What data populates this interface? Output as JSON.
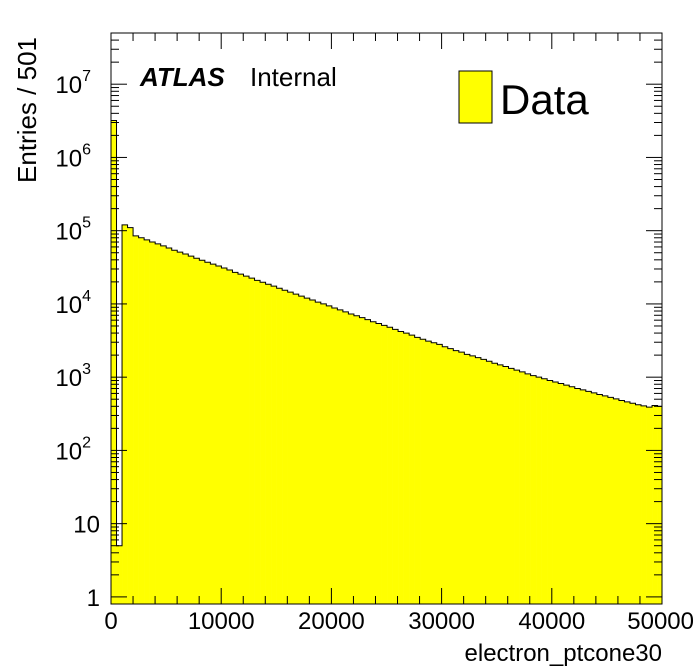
{
  "chart_data": {
    "type": "bar",
    "title": "",
    "xlabel": "electron_ptcone30",
    "ylabel": "Entries / 501",
    "xlim": [
      0,
      50000
    ],
    "ylim": [
      0.8,
      50000000
    ],
    "yscale": "log",
    "grid": false,
    "legend_position": "top-right",
    "annotation": {
      "atlas": "ATLAS",
      "internal": "Internal"
    },
    "x_ticks": [
      {
        "value": 0,
        "label": "0"
      },
      {
        "value": 10000,
        "label": "10000"
      },
      {
        "value": 20000,
        "label": "20000"
      },
      {
        "value": 30000,
        "label": "30000"
      },
      {
        "value": 40000,
        "label": "40000"
      },
      {
        "value": 50000,
        "label": "50000"
      }
    ],
    "y_ticks": [
      {
        "value": 1,
        "base": "1",
        "exp": ""
      },
      {
        "value": 10,
        "base": "10",
        "exp": ""
      },
      {
        "value": 100,
        "base": "10",
        "exp": "2"
      },
      {
        "value": 1000,
        "base": "10",
        "exp": "3"
      },
      {
        "value": 10000,
        "base": "10",
        "exp": "4"
      },
      {
        "value": 100000,
        "base": "10",
        "exp": "5"
      },
      {
        "value": 1000000,
        "base": "10",
        "exp": "6"
      },
      {
        "value": 10000000,
        "base": "10",
        "exp": "7"
      }
    ],
    "bin_width": 501,
    "colors": {
      "fill": "#ffff00",
      "line": "#000000"
    },
    "series": [
      {
        "name": "Data",
        "x": [
          0,
          501,
          1002,
          1503,
          2004,
          2505,
          3006,
          3507,
          4008,
          4509,
          5010,
          5511,
          6012,
          6513,
          7014,
          7515,
          8016,
          8517,
          9018,
          9519,
          10020,
          10521,
          11022,
          11523,
          12024,
          12525,
          13026,
          13527,
          14028,
          14529,
          15030,
          15531,
          16032,
          16533,
          17034,
          17535,
          18036,
          18537,
          19038,
          19539,
          20040,
          20541,
          21042,
          21543,
          22044,
          22545,
          23046,
          23547,
          24048,
          24549,
          25050,
          25551,
          26052,
          26553,
          27054,
          27555,
          28056,
          28557,
          29058,
          29559,
          30060,
          30561,
          31062,
          31563,
          32064,
          32565,
          33066,
          33567,
          34068,
          34569,
          35070,
          35571,
          36072,
          36573,
          37074,
          37575,
          38076,
          38577,
          39078,
          39579,
          40080,
          40581,
          41082,
          41583,
          42084,
          42585,
          43086,
          43587,
          44088,
          44589,
          45090,
          45591,
          46092,
          46593,
          47094,
          47595,
          48096,
          48597,
          49098,
          49599
        ],
        "values": [
          3200000,
          5,
          120000,
          110000,
          85000,
          80000,
          75000,
          70000,
          66000,
          62000,
          58000,
          54000,
          51000,
          48000,
          45000,
          42000,
          39500,
          37000,
          35000,
          33000,
          31000,
          29000,
          27000,
          25500,
          24000,
          22500,
          21000,
          19800,
          18600,
          17500,
          16400,
          15400,
          14500,
          13600,
          12800,
          12000,
          11300,
          10600,
          10000,
          9400,
          8800,
          8300,
          7800,
          7300,
          6900,
          6500,
          6100,
          5700,
          5400,
          5100,
          4800,
          4500,
          4200,
          4000,
          3750,
          3500,
          3300,
          3100,
          2950,
          2800,
          2600,
          2450,
          2300,
          2200,
          2050,
          1950,
          1850,
          1750,
          1650,
          1550,
          1470,
          1400,
          1320,
          1250,
          1180,
          1110,
          1050,
          1000,
          950,
          900,
          860,
          820,
          780,
          740,
          700,
          670,
          640,
          610,
          580,
          555,
          530,
          505,
          480,
          460,
          440,
          420,
          405,
          390,
          410,
          400
        ]
      }
    ]
  }
}
